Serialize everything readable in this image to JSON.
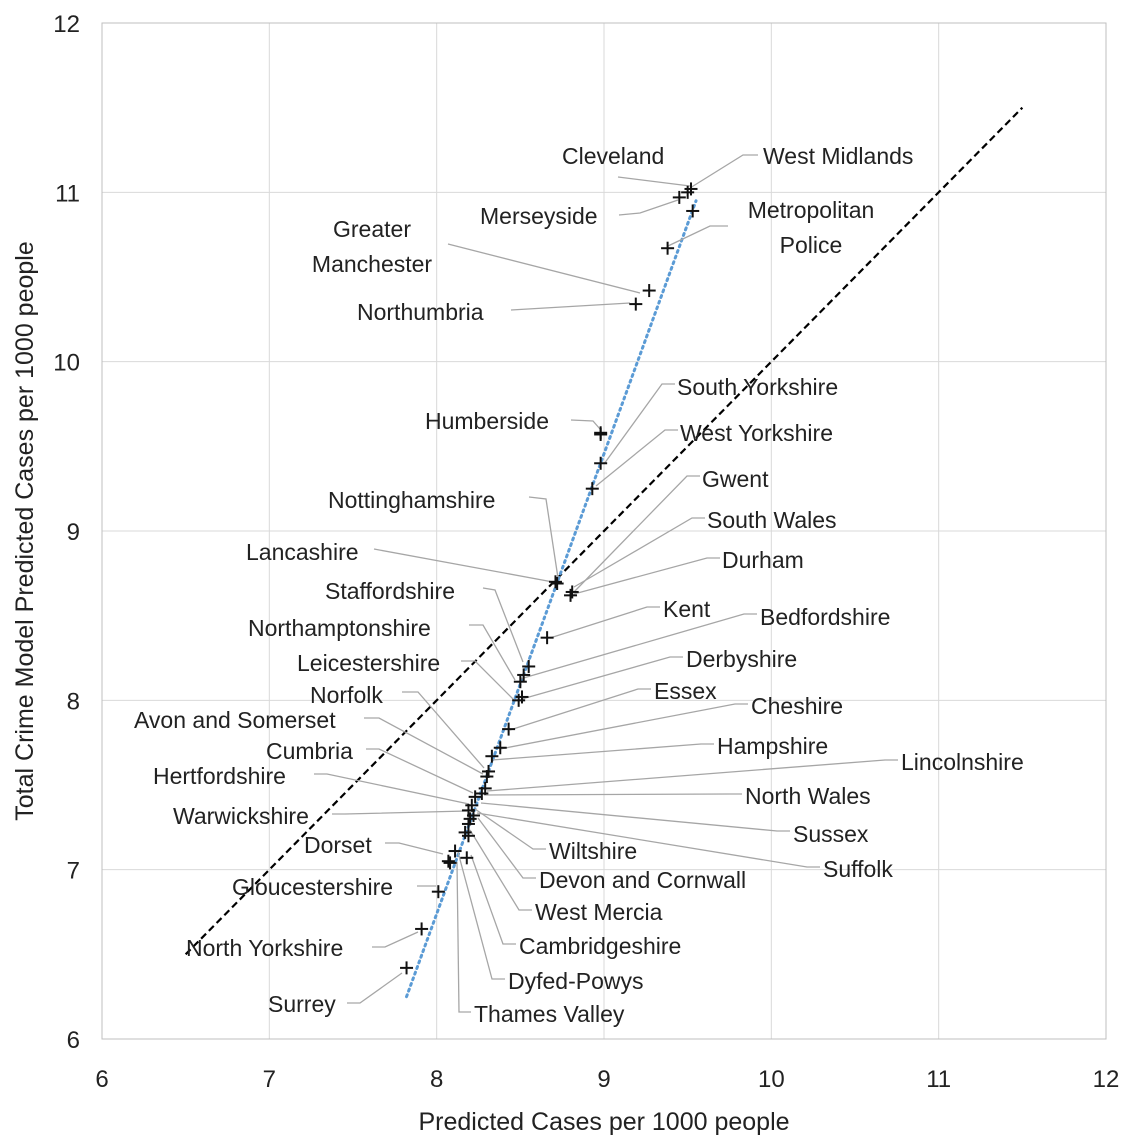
{
  "chart_data": {
    "type": "scatter",
    "xlabel": "Predicted Cases per 1000 people",
    "ylabel": "Total Crime Model Predicted Cases per 1000 people",
    "xlim": [
      6,
      12
    ],
    "ylim": [
      6,
      12
    ],
    "x_ticks": [
      "6",
      "7",
      "8",
      "9",
      "10",
      "11",
      "12"
    ],
    "y_ticks": [
      "6",
      "7",
      "8",
      "9",
      "10",
      "11",
      "12"
    ],
    "grid": true,
    "marker": "plus",
    "reference_line": {
      "style": "dashed",
      "color": "#000000",
      "from": [
        6.5,
        6.5
      ],
      "to": [
        11.5,
        11.5
      ]
    },
    "trend_line": {
      "style": "dotted",
      "color": "#5b9bd5",
      "from": [
        7.82,
        6.25
      ],
      "to": [
        9.55,
        10.95
      ]
    },
    "points": [
      {
        "label": "Cleveland",
        "x": 9.52,
        "y": 11.02
      },
      {
        "label": "West Midlands",
        "x": 9.5,
        "y": 11.0
      },
      {
        "label": "Merseyside",
        "x": 9.45,
        "y": 10.97
      },
      {
        "label": "Metropolitan Police",
        "x": 9.53,
        "y": 10.89
      },
      {
        "label": "Metropolitan Police (2)",
        "x": 9.38,
        "y": 10.67
      },
      {
        "label": "Greater Manchester",
        "x": 9.27,
        "y": 10.42
      },
      {
        "label": "Northumbria",
        "x": 9.19,
        "y": 10.34
      },
      {
        "label": "South Yorkshire",
        "x": 8.98,
        "y": 9.58
      },
      {
        "label": "Humberside",
        "x": 8.98,
        "y": 9.57
      },
      {
        "label": "West Yorkshire",
        "x": 8.98,
        "y": 9.4
      },
      {
        "label": "Gwent",
        "x": 8.93,
        "y": 9.25
      },
      {
        "label": "Nottinghamshire",
        "x": 8.71,
        "y": 8.7
      },
      {
        "label": "Lancashire",
        "x": 8.72,
        "y": 8.69
      },
      {
        "label": "South Wales",
        "x": 8.81,
        "y": 8.64
      },
      {
        "label": "Durham",
        "x": 8.8,
        "y": 8.62
      },
      {
        "label": "Kent",
        "x": 8.66,
        "y": 8.37
      },
      {
        "label": "Staffordshire",
        "x": 8.55,
        "y": 8.2
      },
      {
        "label": "Bedfordshire",
        "x": 8.52,
        "y": 8.15
      },
      {
        "label": "Northamptonshire",
        "x": 8.5,
        "y": 8.11
      },
      {
        "label": "Derbyshire",
        "x": 8.51,
        "y": 8.02
      },
      {
        "label": "Leicestershire",
        "x": 8.49,
        "y": 8.0
      },
      {
        "label": "Essex",
        "x": 8.43,
        "y": 7.83
      },
      {
        "label": "Cheshire",
        "x": 8.38,
        "y": 7.72
      },
      {
        "label": "Hampshire",
        "x": 8.33,
        "y": 7.67
      },
      {
        "label": "Norfolk",
        "x": 8.31,
        "y": 7.58
      },
      {
        "label": "Avon and Somerset",
        "x": 8.3,
        "y": 7.55
      },
      {
        "label": "Lincolnshire",
        "x": 8.29,
        "y": 7.48
      },
      {
        "label": "North Wales",
        "x": 8.27,
        "y": 7.45
      },
      {
        "label": "Cumbria",
        "x": 8.23,
        "y": 7.43
      },
      {
        "label": "Sussex",
        "x": 8.21,
        "y": 7.38
      },
      {
        "label": "Hertfordshire",
        "x": 8.19,
        "y": 7.35
      },
      {
        "label": "Suffolk",
        "x": 8.22,
        "y": 7.32
      },
      {
        "label": "Wiltshire",
        "x": 8.2,
        "y": 7.3
      },
      {
        "label": "Warwickshire",
        "x": 8.19,
        "y": 7.27
      },
      {
        "label": "Devon and Cornwall",
        "x": 8.17,
        "y": 7.22
      },
      {
        "label": "West Mercia",
        "x": 8.19,
        "y": 7.2
      },
      {
        "label": "Dorset",
        "x": 8.11,
        "y": 7.11
      },
      {
        "label": "Cambridgeshire",
        "x": 8.18,
        "y": 7.07
      },
      {
        "label": "Dyfed-Powys",
        "x": 8.07,
        "y": 7.05
      },
      {
        "label": "Thames Valley",
        "x": 8.08,
        "y": 7.04
      },
      {
        "label": "Gloucestershire",
        "x": 8.01,
        "y": 6.87
      },
      {
        "label": "North Yorkshire",
        "x": 7.91,
        "y": 6.65
      },
      {
        "label": "Surrey",
        "x": 7.82,
        "y": 6.42
      }
    ],
    "annotations": [
      {
        "id": "cleveland",
        "text": "Cleveland"
      },
      {
        "id": "west-midlands",
        "text": "West Midlands"
      },
      {
        "id": "merseyside",
        "text": "Merseyside"
      },
      {
        "id": "metropolitan-police",
        "lines": [
          "Metropolitan",
          "Police"
        ]
      },
      {
        "id": "greater-manchester",
        "lines": [
          "Greater",
          "Manchester"
        ]
      },
      {
        "id": "northumbria",
        "text": "Northumbria"
      },
      {
        "id": "south-yorkshire",
        "text": "South Yorkshire"
      },
      {
        "id": "humberside",
        "text": "Humberside"
      },
      {
        "id": "west-yorkshire",
        "text": "West Yorkshire"
      },
      {
        "id": "gwent",
        "text": "Gwent"
      },
      {
        "id": "nottinghamshire",
        "text": "Nottinghamshire"
      },
      {
        "id": "south-wales",
        "text": "South Wales"
      },
      {
        "id": "lancashire",
        "text": "Lancashire"
      },
      {
        "id": "durham",
        "text": "Durham"
      },
      {
        "id": "staffordshire",
        "text": "Staffordshire"
      },
      {
        "id": "kent",
        "text": "Kent"
      },
      {
        "id": "bedfordshire",
        "text": "Bedfordshire"
      },
      {
        "id": "northamptonshire",
        "text": "Northamptonshire"
      },
      {
        "id": "derbyshire",
        "text": "Derbyshire"
      },
      {
        "id": "leicestershire",
        "text": "Leicestershire"
      },
      {
        "id": "essex",
        "text": "Essex"
      },
      {
        "id": "norfolk",
        "text": "Norfolk"
      },
      {
        "id": "cheshire",
        "text": "Cheshire"
      },
      {
        "id": "avon-and-somerset",
        "text": "Avon and Somerset"
      },
      {
        "id": "hampshire",
        "text": "Hampshire"
      },
      {
        "id": "cumbria",
        "text": "Cumbria"
      },
      {
        "id": "lincolnshire",
        "text": "Lincolnshire"
      },
      {
        "id": "hertfordshire",
        "text": "Hertfordshire"
      },
      {
        "id": "north-wales",
        "text": "North Wales"
      },
      {
        "id": "warwickshire",
        "text": "Warwickshire"
      },
      {
        "id": "sussex",
        "text": "Sussex"
      },
      {
        "id": "dorset",
        "text": "Dorset"
      },
      {
        "id": "wiltshire",
        "text": "Wiltshire"
      },
      {
        "id": "suffolk",
        "text": "Suffolk"
      },
      {
        "id": "devon-and-cornwall",
        "text": "Devon and Cornwall"
      },
      {
        "id": "gloucestershire",
        "text": "Gloucestershire"
      },
      {
        "id": "west-mercia",
        "text": "West Mercia"
      },
      {
        "id": "cambridgeshire",
        "text": "Cambridgeshire"
      },
      {
        "id": "north-yorkshire",
        "text": "North Yorkshire"
      },
      {
        "id": "dyfed-powys",
        "text": "Dyfed-Powys"
      },
      {
        "id": "surrey",
        "text": "Surrey"
      },
      {
        "id": "thames-valley",
        "text": "Thames Valley"
      }
    ]
  }
}
